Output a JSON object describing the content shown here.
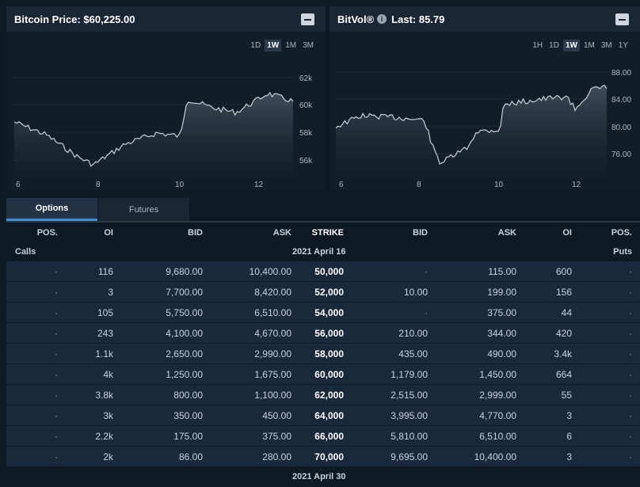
{
  "btc_panel": {
    "title": "Bitcoin Price: $60,225.00",
    "ranges": [
      "1D",
      "1W",
      "1M",
      "3M"
    ],
    "active_range": "1W",
    "y_ticks": [
      "62k",
      "60k",
      "58k",
      "56k"
    ],
    "x_ticks": [
      "6",
      "8",
      "10",
      "12"
    ]
  },
  "vol_panel": {
    "title": "BitVol®",
    "last_label": "Last: 85.79",
    "info_icon": "i",
    "ranges": [
      "1H",
      "1D",
      "1W",
      "1M",
      "3M",
      "1Y"
    ],
    "active_range": "1W",
    "y_ticks": [
      "88.00",
      "84.00",
      "80.00",
      "76.00"
    ],
    "x_ticks": [
      "6",
      "8",
      "10",
      "12"
    ]
  },
  "tabs": [
    "Options",
    "Futures"
  ],
  "active_tab": "Options",
  "table": {
    "headers": [
      "POS.",
      "OI",
      "BID",
      "ASK",
      "STRIKE",
      "BID",
      "ASK",
      "OI",
      "POS."
    ],
    "calls_label": "Calls",
    "puts_label": "Puts",
    "expiry_1": "2021 April 16",
    "expiry_2": "2021 April 30",
    "rows": [
      {
        "c_pos": "·",
        "c_oi": "116",
        "c_bid": "9,680.00",
        "c_ask": "10,400.00",
        "strike": "50,000",
        "p_bid": "·",
        "p_ask": "115.00",
        "p_oi": "600",
        "p_pos": "·"
      },
      {
        "c_pos": "·",
        "c_oi": "3",
        "c_bid": "7,700.00",
        "c_ask": "8,420.00",
        "strike": "52,000",
        "p_bid": "10.00",
        "p_ask": "199.00",
        "p_oi": "156",
        "p_pos": "·"
      },
      {
        "c_pos": "·",
        "c_oi": "105",
        "c_bid": "5,750.00",
        "c_ask": "6,510.00",
        "strike": "54,000",
        "p_bid": "·",
        "p_ask": "375.00",
        "p_oi": "44",
        "p_pos": "·"
      },
      {
        "c_pos": "·",
        "c_oi": "243",
        "c_bid": "4,100.00",
        "c_ask": "4,670.00",
        "strike": "56,000",
        "p_bid": "210.00",
        "p_ask": "344.00",
        "p_oi": "420",
        "p_pos": "·"
      },
      {
        "c_pos": "·",
        "c_oi": "1.1k",
        "c_bid": "2,650.00",
        "c_ask": "2,990.00",
        "strike": "58,000",
        "p_bid": "435.00",
        "p_ask": "490.00",
        "p_oi": "3.4k",
        "p_pos": "·"
      },
      {
        "c_pos": "·",
        "c_oi": "4k",
        "c_bid": "1,250.00",
        "c_ask": "1,675.00",
        "strike": "60,000",
        "p_bid": "1,179.00",
        "p_ask": "1,450.00",
        "p_oi": "664",
        "p_pos": "·"
      },
      {
        "c_pos": "·",
        "c_oi": "3.8k",
        "c_bid": "800.00",
        "c_ask": "1,100.00",
        "strike": "62,000",
        "p_bid": "2,515.00",
        "p_ask": "2,999.00",
        "p_oi": "55",
        "p_pos": "·"
      },
      {
        "c_pos": "·",
        "c_oi": "3k",
        "c_bid": "350.00",
        "c_ask": "450.00",
        "strike": "64,000",
        "p_bid": "3,995.00",
        "p_ask": "4,770.00",
        "p_oi": "3",
        "p_pos": "·"
      },
      {
        "c_pos": "·",
        "c_oi": "2.2k",
        "c_bid": "175.00",
        "c_ask": "375.00",
        "strike": "66,000",
        "p_bid": "5,810.00",
        "p_ask": "6,510.00",
        "p_oi": "6",
        "p_pos": "·"
      },
      {
        "c_pos": "·",
        "c_oi": "2k",
        "c_bid": "86.00",
        "c_ask": "280.00",
        "strike": "70,000",
        "p_bid": "9,695.00",
        "p_ask": "10,400.00",
        "p_oi": "3",
        "p_pos": "·"
      }
    ]
  },
  "colors": {
    "background": "#0f1923",
    "panel": "#121d28",
    "row": "#19283a",
    "accent": "#3d8fd6"
  }
}
